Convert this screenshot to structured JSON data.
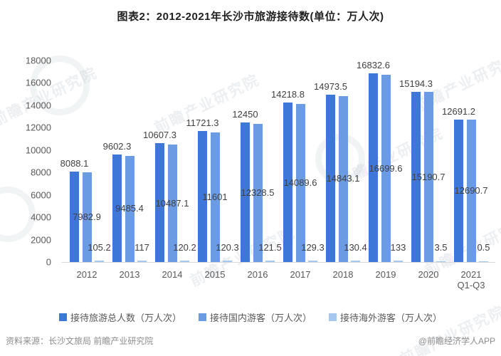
{
  "chart_data": {
    "type": "bar",
    "title": "图表2：2012-2021年长沙市旅游接待数(单位：万人次)",
    "categories": [
      "2012",
      "2013",
      "2014",
      "2015",
      "2016",
      "2017",
      "2018",
      "2019",
      "2020",
      "2021\nQ1-Q3"
    ],
    "series": [
      {
        "name": "接待旅游总人数（万人次）",
        "color": "#3d78d8",
        "values": [
          8088.1,
          9602.3,
          10607.3,
          11721.3,
          12450,
          14218.8,
          14973.5,
          16832.6,
          15194.3,
          12691.2
        ]
      },
      {
        "name": "接待国内游客（万人次）",
        "color": "#6b9be2",
        "values": [
          7982.9,
          9485.4,
          10487.1,
          11601,
          12328.5,
          14089.6,
          14843.1,
          16699.6,
          15190.7,
          12690.7
        ]
      },
      {
        "name": "接待海外游客（万人次）",
        "color": "#a6c8f0",
        "values": [
          105.2,
          117,
          120.2,
          120.3,
          121.5,
          129.3,
          130.4,
          133,
          3.5,
          0.5
        ]
      }
    ],
    "xlabel": "",
    "ylabel": "",
    "ylim": [
      0,
      18000
    ],
    "ytick_step": 2000,
    "grid": false,
    "legend_position": "bottom"
  },
  "footer": {
    "source": "资料来源：长沙文旅局 前瞻产业研究院",
    "credit": "@前瞻经济学人APP"
  },
  "watermark": {
    "text": "前瞻产业研究院"
  }
}
